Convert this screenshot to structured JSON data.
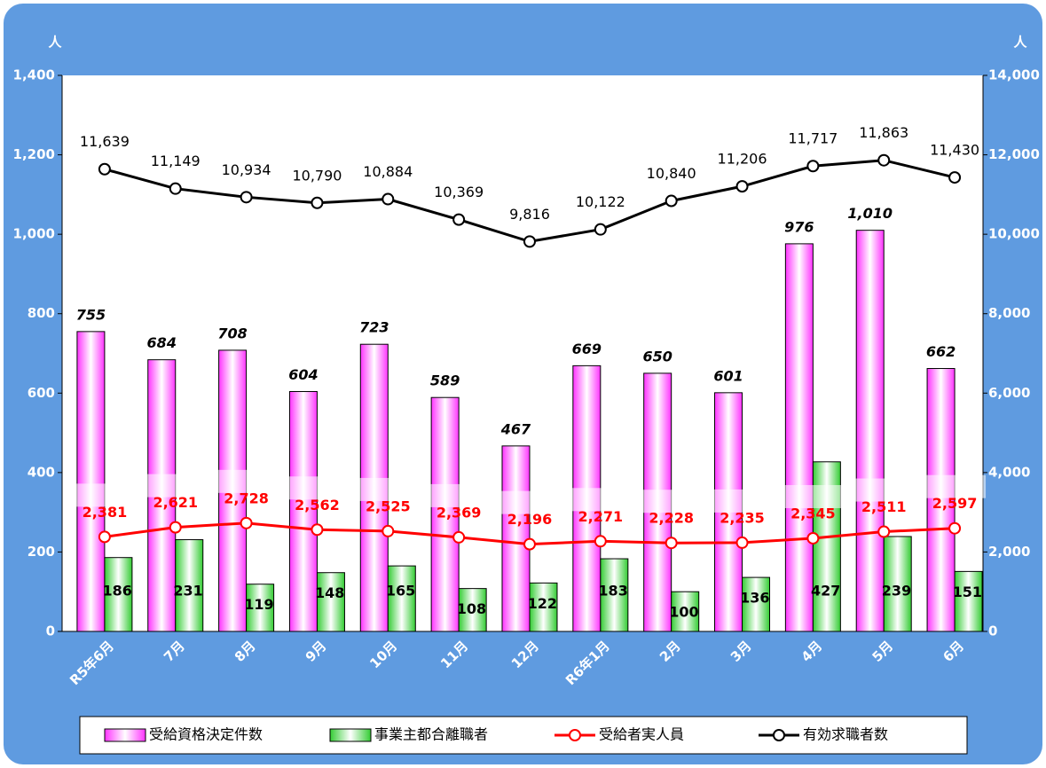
{
  "chart_data": {
    "type": "combo",
    "y_unit": "人",
    "y2_unit": "人",
    "categories": [
      "R5年6月",
      "7月",
      "8月",
      "9月",
      "10月",
      "11月",
      "12月",
      "R6年1月",
      "2月",
      "3月",
      "4月",
      "5月",
      "6月"
    ],
    "ylim": [
      0,
      1400
    ],
    "yticks": [
      0,
      200,
      400,
      600,
      800,
      {
        "value": 1000,
        "label": "1,000"
      },
      {
        "value": 1200,
        "label": "1,200"
      },
      {
        "value": 1400,
        "label": "1,400"
      }
    ],
    "y2lim": [
      0,
      14000
    ],
    "y2ticks": [
      0,
      {
        "value": 2000,
        "label": "2,000"
      },
      {
        "value": 4000,
        "label": "4,000"
      },
      {
        "value": 6000,
        "label": "6,000"
      },
      {
        "value": 8000,
        "label": "8,000"
      },
      {
        "value": 10000,
        "label": "10,000"
      },
      {
        "value": 12000,
        "label": "12,000"
      },
      {
        "value": 14000,
        "label": "14,000"
      }
    ],
    "legend": "bottom",
    "series": [
      {
        "name": "受給資格決定件数",
        "type": "bar",
        "color": "#ff33ff",
        "values": [
          755,
          684,
          708,
          604,
          723,
          589,
          467,
          669,
          650,
          601,
          976,
          1010,
          662
        ],
        "value_labels": [
          "755",
          "684",
          "708",
          "604",
          "723",
          "589",
          "467",
          "669",
          "650",
          "601",
          "976",
          "1,010",
          "662"
        ]
      },
      {
        "name": "事業主都合離職者",
        "type": "bar",
        "color": "#33cc33",
        "values": [
          186,
          231,
          119,
          148,
          165,
          108,
          122,
          183,
          100,
          136,
          427,
          239,
          151
        ]
      },
      {
        "name": "受給者実人員",
        "type": "line",
        "axis": "y2",
        "color": "#ff0000",
        "values": [
          2381,
          2621,
          2728,
          2562,
          2525,
          2369,
          2196,
          2271,
          2228,
          2235,
          2345,
          2511,
          2597
        ],
        "value_labels": [
          "2,381",
          "2,621",
          "2,728",
          "2,562",
          "2,525",
          "2,369",
          "2,196",
          "2,271",
          "2,228",
          "2,235",
          "2,345",
          "2,511",
          "2,597"
        ]
      },
      {
        "name": "有効求職者数",
        "type": "line",
        "axis": "y2",
        "color": "#000000",
        "values": [
          11639,
          11149,
          10934,
          10790,
          10884,
          10369,
          9816,
          10122,
          10840,
          11206,
          11717,
          11863,
          11430
        ],
        "value_labels": [
          "11,639",
          "11,149",
          "10,934",
          "10,790",
          "10,884",
          "10,369",
          "9,816",
          "10,122",
          "10,840",
          "11,206",
          "11,717",
          "11,863",
          "11,430"
        ]
      }
    ]
  }
}
